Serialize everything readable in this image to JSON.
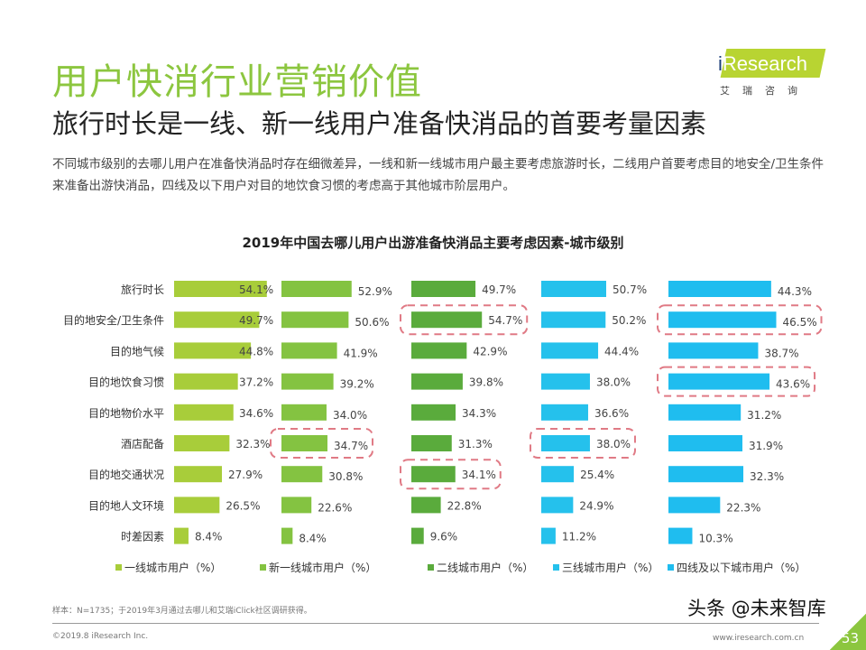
{
  "header": {
    "title": "用户快消行业营销价值",
    "subtitle": "旅行时长是一线、新一线用户准备快消品的首要考量因素",
    "description": "不同城市级别的去哪儿用户在准备快消品时存在细微差异，一线和新一线城市用户最主要考虑旅游时长，二线用户首要考虑目的地安全/卫生条件来准备出游快消品，四线及以下用户对目的地饮食习惯的考虑高于其他城市阶层用户。"
  },
  "logo": {
    "text": "iResearch",
    "cn": "艾瑞咨询"
  },
  "chart_data": {
    "type": "bar",
    "orientation": "horizontal",
    "title": "2019年中国去哪儿用户出游准备快消品主要考虑因素-城市级别",
    "categories": [
      "旅行时长",
      "目的地安全/卫生条件",
      "目的地气候",
      "目的地饮食习惯",
      "目的地物价水平",
      "酒店配备",
      "目的地交通状况",
      "目的地人文环境",
      "时差因素"
    ],
    "series": [
      {
        "name": "一线城市用户（%）",
        "color": "#a8cd3a",
        "values": [
          54.1,
          49.7,
          44.8,
          37.2,
          34.6,
          32.3,
          27.9,
          26.5,
          8.4
        ],
        "labels": [
          "54.1%",
          "49.7%",
          "44.8%",
          "37.2%",
          "34.6%",
          "32.3%",
          "27.9%",
          "26.5%",
          "8.4%"
        ],
        "highlighted": []
      },
      {
        "name": "新一线城市用户（%）",
        "color": "#84c341",
        "values": [
          52.9,
          50.6,
          41.9,
          39.2,
          34.0,
          34.7,
          30.8,
          22.6,
          8.4
        ],
        "labels": [
          "52.9%",
          "50.6%",
          "41.9%",
          "39.2%",
          "34.0%",
          "34.7%",
          "30.8%",
          "22.6%",
          "8.4%"
        ],
        "highlighted": [
          5
        ]
      },
      {
        "name": "二线城市用户（%）",
        "color": "#5aab3c",
        "values": [
          49.7,
          54.7,
          42.9,
          39.8,
          34.3,
          31.3,
          34.1,
          22.8,
          9.6
        ],
        "labels": [
          "49.7%",
          "54.7%",
          "42.9%",
          "39.8%",
          "34.3%",
          "31.3%",
          "34.1%",
          "22.8%",
          "9.6%"
        ],
        "highlighted": [
          1,
          6
        ]
      },
      {
        "name": "三线城市用户（%）",
        "color": "#25c1ec",
        "values": [
          50.7,
          50.2,
          44.4,
          38.0,
          36.6,
          38.0,
          25.4,
          24.9,
          11.2
        ],
        "labels": [
          "50.7%",
          "50.2%",
          "44.4%",
          "38.0%",
          "36.6%",
          "38.0%",
          "25.4%",
          "24.9%",
          "11.2%"
        ],
        "highlighted": [
          5
        ]
      },
      {
        "name": "四线及以下城市用户（%）",
        "color": "#1fbdef",
        "values": [
          44.3,
          46.5,
          38.7,
          43.6,
          31.2,
          31.9,
          32.3,
          22.3,
          10.3
        ],
        "labels": [
          "44.3%",
          "46.5%",
          "38.7%",
          "43.6%",
          "31.2%",
          "31.9%",
          "32.3%",
          "22.3%",
          "10.3%"
        ],
        "highlighted": [
          1,
          3
        ]
      }
    ],
    "legend": "bottom",
    "grid": false,
    "highlight_color": "#e07a85"
  },
  "footer": {
    "note": "样本：N=1735；于2019年3月通过去哪儿和艾瑞iClick社区调研获得。",
    "copyright": "©2019.8 iResearch Inc.",
    "site": "www.iresearch.com.cn",
    "page": "53",
    "watermark": "头条 @未来智库"
  }
}
